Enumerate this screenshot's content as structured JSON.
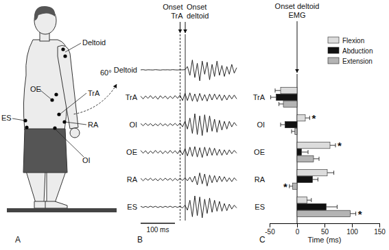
{
  "chart_data": {
    "type": "bar",
    "orientation": "horizontal",
    "categories": [
      "TrA",
      "OI",
      "OE",
      "RA",
      "ES"
    ],
    "series": [
      {
        "name": "Flexion",
        "color": "#dcdcdc",
        "values": [
          -30,
          15,
          60,
          55,
          18
        ],
        "errors": [
          10,
          8,
          10,
          12,
          8
        ]
      },
      {
        "name": "Abduction",
        "color": "#111111",
        "values": [
          -38,
          -22,
          8,
          28,
          53
        ],
        "errors": [
          10,
          8,
          12,
          10,
          20
        ]
      },
      {
        "name": "Extension",
        "color": "#b4b4b4",
        "values": [
          -25,
          -4,
          30,
          -8,
          97
        ],
        "errors": [
          8,
          6,
          10,
          6,
          10
        ]
      }
    ],
    "xlim": [
      -50,
      150
    ],
    "xticks": [
      -50,
      0,
      50,
      100,
      150
    ],
    "xlabel": "Time (ms)",
    "legend": "top-right",
    "annotations": [
      {
        "text": [
          "Onset deltoid",
          "EMG"
        ],
        "x": 0
      },
      {
        "text": "*",
        "category": "OI",
        "series": "Flexion"
      },
      {
        "text": "*",
        "category": "OE",
        "series": "Flexion"
      },
      {
        "text": "*",
        "category": "RA",
        "series": "Extension"
      },
      {
        "text": "*",
        "category": "ES",
        "series": "Extension"
      }
    ]
  },
  "figure": {
    "panel_labels": [
      "A",
      "B",
      "C"
    ],
    "drawing": {
      "labels": [
        "Deltoid",
        "TrA",
        "OE",
        "ES",
        "RA",
        "OI"
      ],
      "angle_label": "60°"
    },
    "emg": {
      "xlim": [
        -130,
        150
      ],
      "onsets": [
        {
          "label": [
            "Onset",
            "TrA"
          ],
          "time": -15
        },
        {
          "label": [
            "Onset",
            "deltoid"
          ],
          "time": 0
        }
      ],
      "scale_bar": {
        "label": "100 ms",
        "length": 100
      },
      "traces": [
        {
          "label": "Deltoid",
          "signal": [
            0,
            0.02,
            -0.02,
            0.01,
            0,
            -0.01,
            0.02,
            0,
            -0.02,
            0.01,
            0,
            0.01,
            -0.01,
            0.02,
            0,
            -0.01,
            0.01,
            0,
            0.02,
            0.3,
            -0.5,
            0.9,
            -0.7,
            0.6,
            -1,
            0.8,
            -0.4,
            0.7,
            -0.9,
            0.5,
            -0.6,
            0.8,
            -0.5,
            0.4,
            -0.6,
            0.3,
            -0.4,
            0.5,
            -0.3,
            0.2
          ]
        },
        {
          "label": "TrA",
          "signal": [
            0.1,
            -0.15,
            0.12,
            -0.1,
            0.15,
            -0.12,
            0.1,
            -0.18,
            0.14,
            -0.1,
            0.12,
            -0.15,
            0.1,
            -0.12,
            0.15,
            -0.1,
            0.2,
            -0.3,
            0.35,
            -0.3,
            0.4,
            -0.35,
            0.3,
            -0.4,
            0.35,
            -0.3,
            0.25,
            -0.35,
            0.3,
            -0.25,
            0.3,
            -0.2,
            0.25,
            -0.3,
            0.2,
            -0.25,
            0.2,
            -0.15,
            0.2,
            -0.15
          ]
        },
        {
          "label": "OI",
          "signal": [
            0.1,
            -0.1,
            0.12,
            -0.08,
            0.1,
            -0.12,
            0.08,
            -0.1,
            0.12,
            -0.1,
            0.08,
            -0.12,
            0.1,
            -0.08,
            0.12,
            -0.1,
            0.15,
            -0.2,
            0.3,
            -0.4,
            0.6,
            -0.8,
            1,
            -0.9,
            0.8,
            -1,
            0.9,
            -0.7,
            0.8,
            -0.6,
            0.5,
            -0.7,
            0.4,
            -0.5,
            0.3,
            -0.4,
            0.3,
            -0.2,
            0.2,
            -0.1
          ]
        },
        {
          "label": "OE",
          "signal": [
            0.15,
            -0.1,
            0.12,
            -0.15,
            0.1,
            -0.12,
            0.15,
            -0.1,
            0.12,
            -0.15,
            0.1,
            -0.12,
            0.15,
            -0.1,
            0.12,
            -0.15,
            0.2,
            -0.25,
            0.3,
            -0.35,
            0.45,
            -0.4,
            0.5,
            -0.45,
            0.4,
            -0.5,
            0.45,
            -0.35,
            0.4,
            -0.3,
            0.35,
            -0.3,
            0.25,
            -0.3,
            0.2,
            -0.25,
            0.2,
            -0.15,
            0.15,
            -0.1
          ]
        },
        {
          "label": "RA",
          "signal": [
            0.1,
            -0.12,
            0.1,
            -0.08,
            0.12,
            -0.1,
            0.08,
            -0.12,
            0.1,
            -0.1,
            0.12,
            -0.08,
            0.1,
            -0.12,
            0.1,
            -0.1,
            0.12,
            -0.1,
            0.15,
            -0.12,
            0.2,
            -0.25,
            0.3,
            -0.5,
            0.6,
            -0.4,
            0.5,
            -0.6,
            0.4,
            -0.3,
            0.35,
            -0.25,
            0.3,
            -0.2,
            0.25,
            -0.2,
            0.15,
            -0.2,
            0.15,
            -0.1
          ]
        },
        {
          "label": "ES",
          "signal": [
            0.05,
            -0.05,
            0.04,
            -0.05,
            0.06,
            -0.04,
            0.05,
            -0.06,
            0.04,
            -0.05,
            0.05,
            -0.04,
            0.06,
            -0.05,
            0.04,
            -0.05,
            0.06,
            -0.1,
            0.15,
            -0.3,
            0.6,
            -0.9,
            1,
            -0.8,
            0.9,
            -1,
            0.7,
            -0.6,
            0.8,
            -0.5,
            0.6,
            -0.4,
            0.5,
            -0.4,
            0.3,
            -0.35,
            0.25,
            -0.2,
            0.15,
            -0.1
          ]
        }
      ]
    }
  }
}
